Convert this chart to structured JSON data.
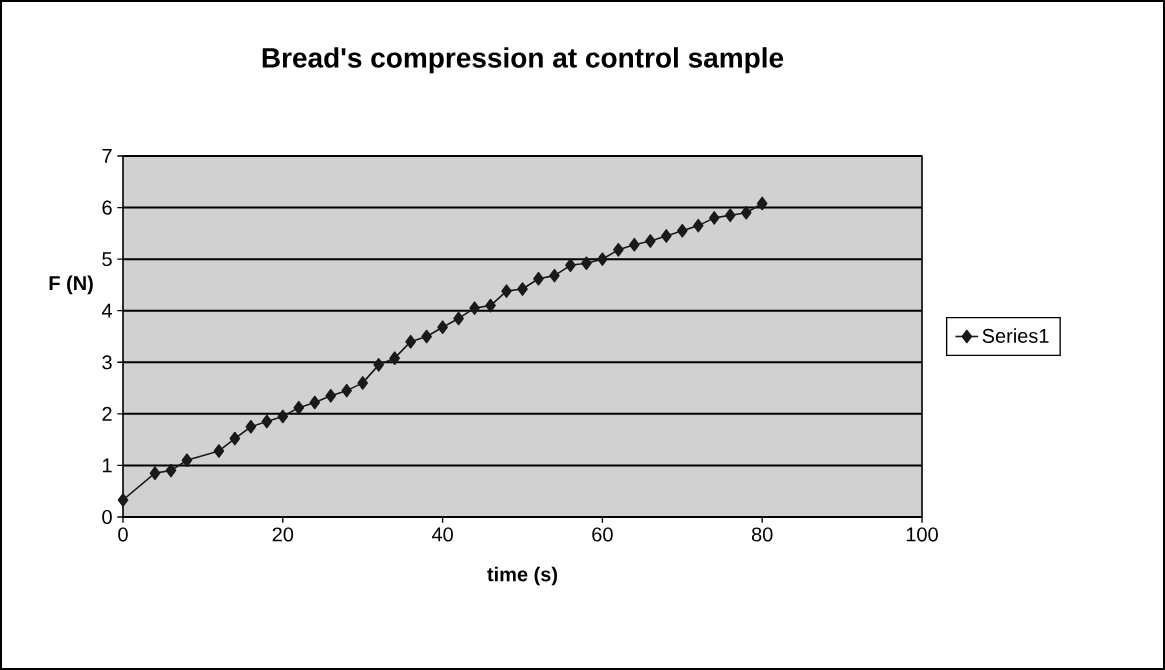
{
  "chart_data": {
    "type": "line",
    "title": "Bread's compression at control sample",
    "xlabel": "time (s)",
    "ylabel": "F (N)",
    "x": [
      0,
      4,
      6,
      8,
      12,
      14,
      16,
      18,
      20,
      22,
      24,
      26,
      28,
      30,
      32,
      34,
      36,
      38,
      40,
      42,
      44,
      46,
      48,
      50,
      52,
      54,
      56,
      58,
      60,
      62,
      64,
      66,
      68,
      70,
      72,
      74,
      76,
      78,
      80
    ],
    "series": [
      {
        "name": "Series1",
        "color": "#1a1a1a",
        "values": [
          0.33,
          0.85,
          0.9,
          1.1,
          1.28,
          1.52,
          1.75,
          1.85,
          1.95,
          2.12,
          2.22,
          2.35,
          2.45,
          2.6,
          2.95,
          3.08,
          3.4,
          3.5,
          3.68,
          3.85,
          4.05,
          4.1,
          4.38,
          4.42,
          4.62,
          4.68,
          4.88,
          4.92,
          5.0,
          5.18,
          5.28,
          5.35,
          5.45,
          5.55,
          5.65,
          5.8,
          5.85,
          5.9,
          6.08
        ]
      }
    ],
    "xlim": [
      0,
      100
    ],
    "ylim": [
      0,
      7
    ],
    "xticks": [
      0,
      20,
      40,
      60,
      80,
      100
    ],
    "yticks": [
      0,
      1,
      2,
      3,
      4,
      5,
      6,
      7
    ],
    "grid": "y",
    "legend": "right",
    "marker": "diamond",
    "line_style": "solid"
  }
}
